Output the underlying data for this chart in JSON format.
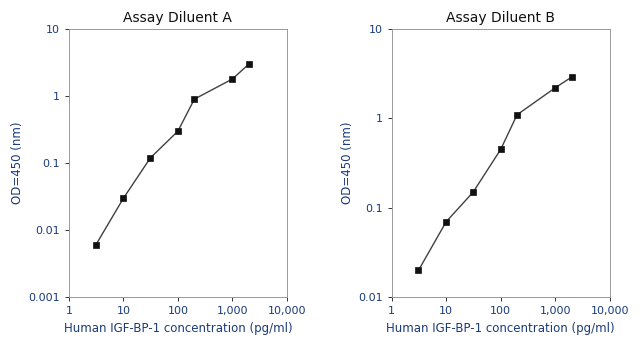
{
  "title_A": "Assay Diluent A",
  "title_B": "Assay Diluent B",
  "xlabel": "Human IGF-BP-1 concentration (pg/ml)",
  "ylabel": "OD=450 (nm)",
  "x_A": [
    3.1,
    10,
    31.25,
    100,
    200,
    1000,
    2000
  ],
  "y_A": [
    0.006,
    0.03,
    0.12,
    0.3,
    0.9,
    1.8,
    3.0
  ],
  "x_B": [
    3.1,
    10,
    31.25,
    100,
    200,
    1000,
    2000
  ],
  "y_B": [
    0.02,
    0.07,
    0.15,
    0.45,
    1.1,
    2.2,
    2.9
  ],
  "xlim": [
    1,
    10000
  ],
  "ylim_A": [
    0.001,
    10
  ],
  "ylim_B": [
    0.01,
    10
  ],
  "yticks_A": [
    0.001,
    0.01,
    0.1,
    1,
    10
  ],
  "yticks_B": [
    0.01,
    0.1,
    1,
    10
  ],
  "xticks": [
    1,
    10,
    100,
    1000,
    10000
  ],
  "xtick_labels": [
    "1",
    "10",
    "100",
    "1,000",
    "10,000"
  ],
  "line_color": "#404040",
  "marker_color": "#111111",
  "marker_size": 4.5,
  "title_fontsize": 10,
  "axis_label_fontsize": 8.5,
  "tick_fontsize": 8,
  "tick_label_color": "#1a3a7a",
  "axis_label_color": "#1a3a7a",
  "title_color": "#111111",
  "bg_color": "#ffffff",
  "spine_color": "#999999"
}
